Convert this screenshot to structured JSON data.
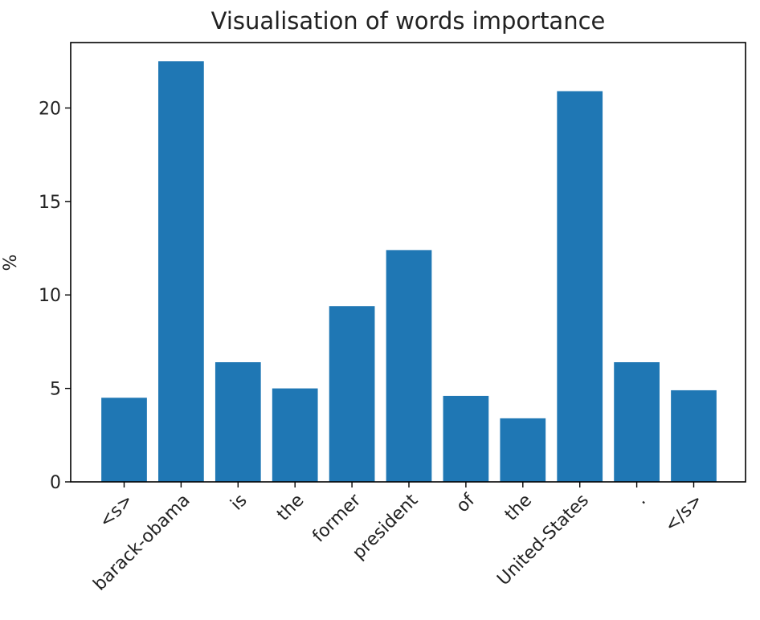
{
  "chart_data": {
    "type": "bar",
    "title": "Visualisation of words importance",
    "xlabel": "",
    "ylabel": "%",
    "categories": [
      "<s>",
      "barack-obama",
      "is",
      "the",
      "former",
      "president",
      "of",
      "the",
      "United-States",
      ".",
      "</s>"
    ],
    "values": [
      4.5,
      22.5,
      6.4,
      5.0,
      9.4,
      12.4,
      4.6,
      3.4,
      20.9,
      6.4,
      4.9
    ],
    "ylim": [
      0,
      23.5
    ],
    "yticks": [
      0,
      5,
      10,
      15,
      20
    ],
    "grid": false,
    "legend": "none",
    "bar_color": "#1f77b4"
  }
}
